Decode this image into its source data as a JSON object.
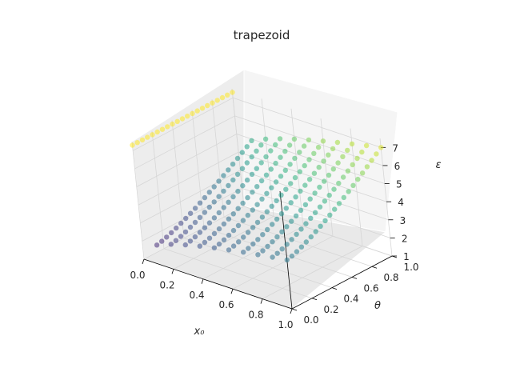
{
  "chart_data": {
    "type": "scatter",
    "projection": "3d",
    "title": "trapezoid",
    "xlabel": "x₀",
    "ylabel": "θ",
    "zlabel": "ε",
    "xlim": [
      0.0,
      1.0
    ],
    "ylim": [
      0.0,
      1.0
    ],
    "zlim": [
      1.0,
      7.5
    ],
    "xticks": [
      "0.0",
      "0.2",
      "0.4",
      "0.6",
      "0.8",
      "1.0"
    ],
    "yticks": [
      "0.0",
      "0.2",
      "0.4",
      "0.6",
      "0.8",
      "1.0"
    ],
    "zticks": [
      "1",
      "2",
      "3",
      "4",
      "5",
      "6",
      "7"
    ],
    "grid": true,
    "colormap": "viridis",
    "colors": {
      "pane": "#f2f2f2",
      "grid": "#d6d6d6",
      "axis": "#000000"
    },
    "x_grid": [
      0.0,
      0.1,
      0.2,
      0.3,
      0.4,
      0.5,
      0.6,
      0.7,
      0.8,
      0.9,
      1.0
    ],
    "theta_grid": [
      0.0,
      0.05,
      0.1,
      0.15,
      0.2,
      0.25,
      0.3,
      0.35,
      0.4,
      0.45,
      0.5,
      0.55,
      0.6,
      0.65,
      0.7,
      0.75,
      0.8,
      0.85,
      0.9,
      0.95,
      1.0
    ],
    "edge_x0_zero": {
      "theta": [
        0.0,
        0.1,
        0.2,
        0.3,
        0.4,
        0.5,
        0.6,
        0.7,
        0.8,
        0.9,
        1.0
      ],
      "epsilon": [
        7.3,
        7.3,
        7.3,
        7.3,
        7.3,
        7.3,
        7.3,
        7.3,
        7.3,
        7.3,
        7.3
      ]
    },
    "surface_note": "epsilon rises from about 1.3 near x0=0.05, theta=0 to about 7 at x0=1, theta=1",
    "points": [
      [
        0.0,
        0.0,
        7.3
      ],
      [
        0.0,
        0.25,
        7.3
      ],
      [
        0.0,
        0.5,
        7.3
      ],
      [
        0.0,
        0.75,
        7.3
      ],
      [
        0.0,
        1.0,
        7.3
      ],
      [
        0.05,
        0.0,
        1.3
      ],
      [
        0.05,
        0.2,
        1.5
      ],
      [
        0.05,
        0.4,
        1.9
      ],
      [
        0.05,
        0.6,
        2.6
      ],
      [
        0.05,
        0.8,
        3.5
      ],
      [
        0.05,
        1.0,
        4.6
      ],
      [
        0.1,
        0.0,
        1.6
      ],
      [
        0.1,
        0.2,
        1.9
      ],
      [
        0.1,
        0.4,
        2.5
      ],
      [
        0.1,
        0.6,
        3.3
      ],
      [
        0.1,
        0.8,
        4.2
      ],
      [
        0.1,
        1.0,
        5.2
      ],
      [
        0.2,
        0.0,
        2.2
      ],
      [
        0.2,
        0.2,
        2.6
      ],
      [
        0.2,
        0.4,
        3.2
      ],
      [
        0.2,
        0.6,
        4.0
      ],
      [
        0.2,
        0.8,
        4.9
      ],
      [
        0.2,
        1.0,
        5.7
      ],
      [
        0.4,
        0.0,
        2.8
      ],
      [
        0.4,
        0.2,
        3.3
      ],
      [
        0.4,
        0.4,
        4.0
      ],
      [
        0.4,
        0.6,
        4.8
      ],
      [
        0.4,
        0.8,
        5.6
      ],
      [
        0.4,
        1.0,
        6.2
      ],
      [
        0.6,
        0.0,
        3.2
      ],
      [
        0.6,
        0.2,
        3.8
      ],
      [
        0.6,
        0.4,
        4.5
      ],
      [
        0.6,
        0.6,
        5.3
      ],
      [
        0.6,
        0.8,
        6.0
      ],
      [
        0.6,
        1.0,
        6.6
      ],
      [
        0.8,
        0.0,
        3.5
      ],
      [
        0.8,
        0.2,
        4.1
      ],
      [
        0.8,
        0.4,
        4.9
      ],
      [
        0.8,
        0.6,
        5.6
      ],
      [
        0.8,
        0.8,
        6.3
      ],
      [
        0.8,
        1.0,
        6.8
      ],
      [
        1.0,
        0.0,
        3.7
      ],
      [
        1.0,
        0.2,
        4.4
      ],
      [
        1.0,
        0.4,
        5.1
      ],
      [
        1.0,
        0.6,
        5.9
      ],
      [
        1.0,
        0.8,
        6.5
      ],
      [
        1.0,
        1.0,
        7.0
      ]
    ]
  }
}
